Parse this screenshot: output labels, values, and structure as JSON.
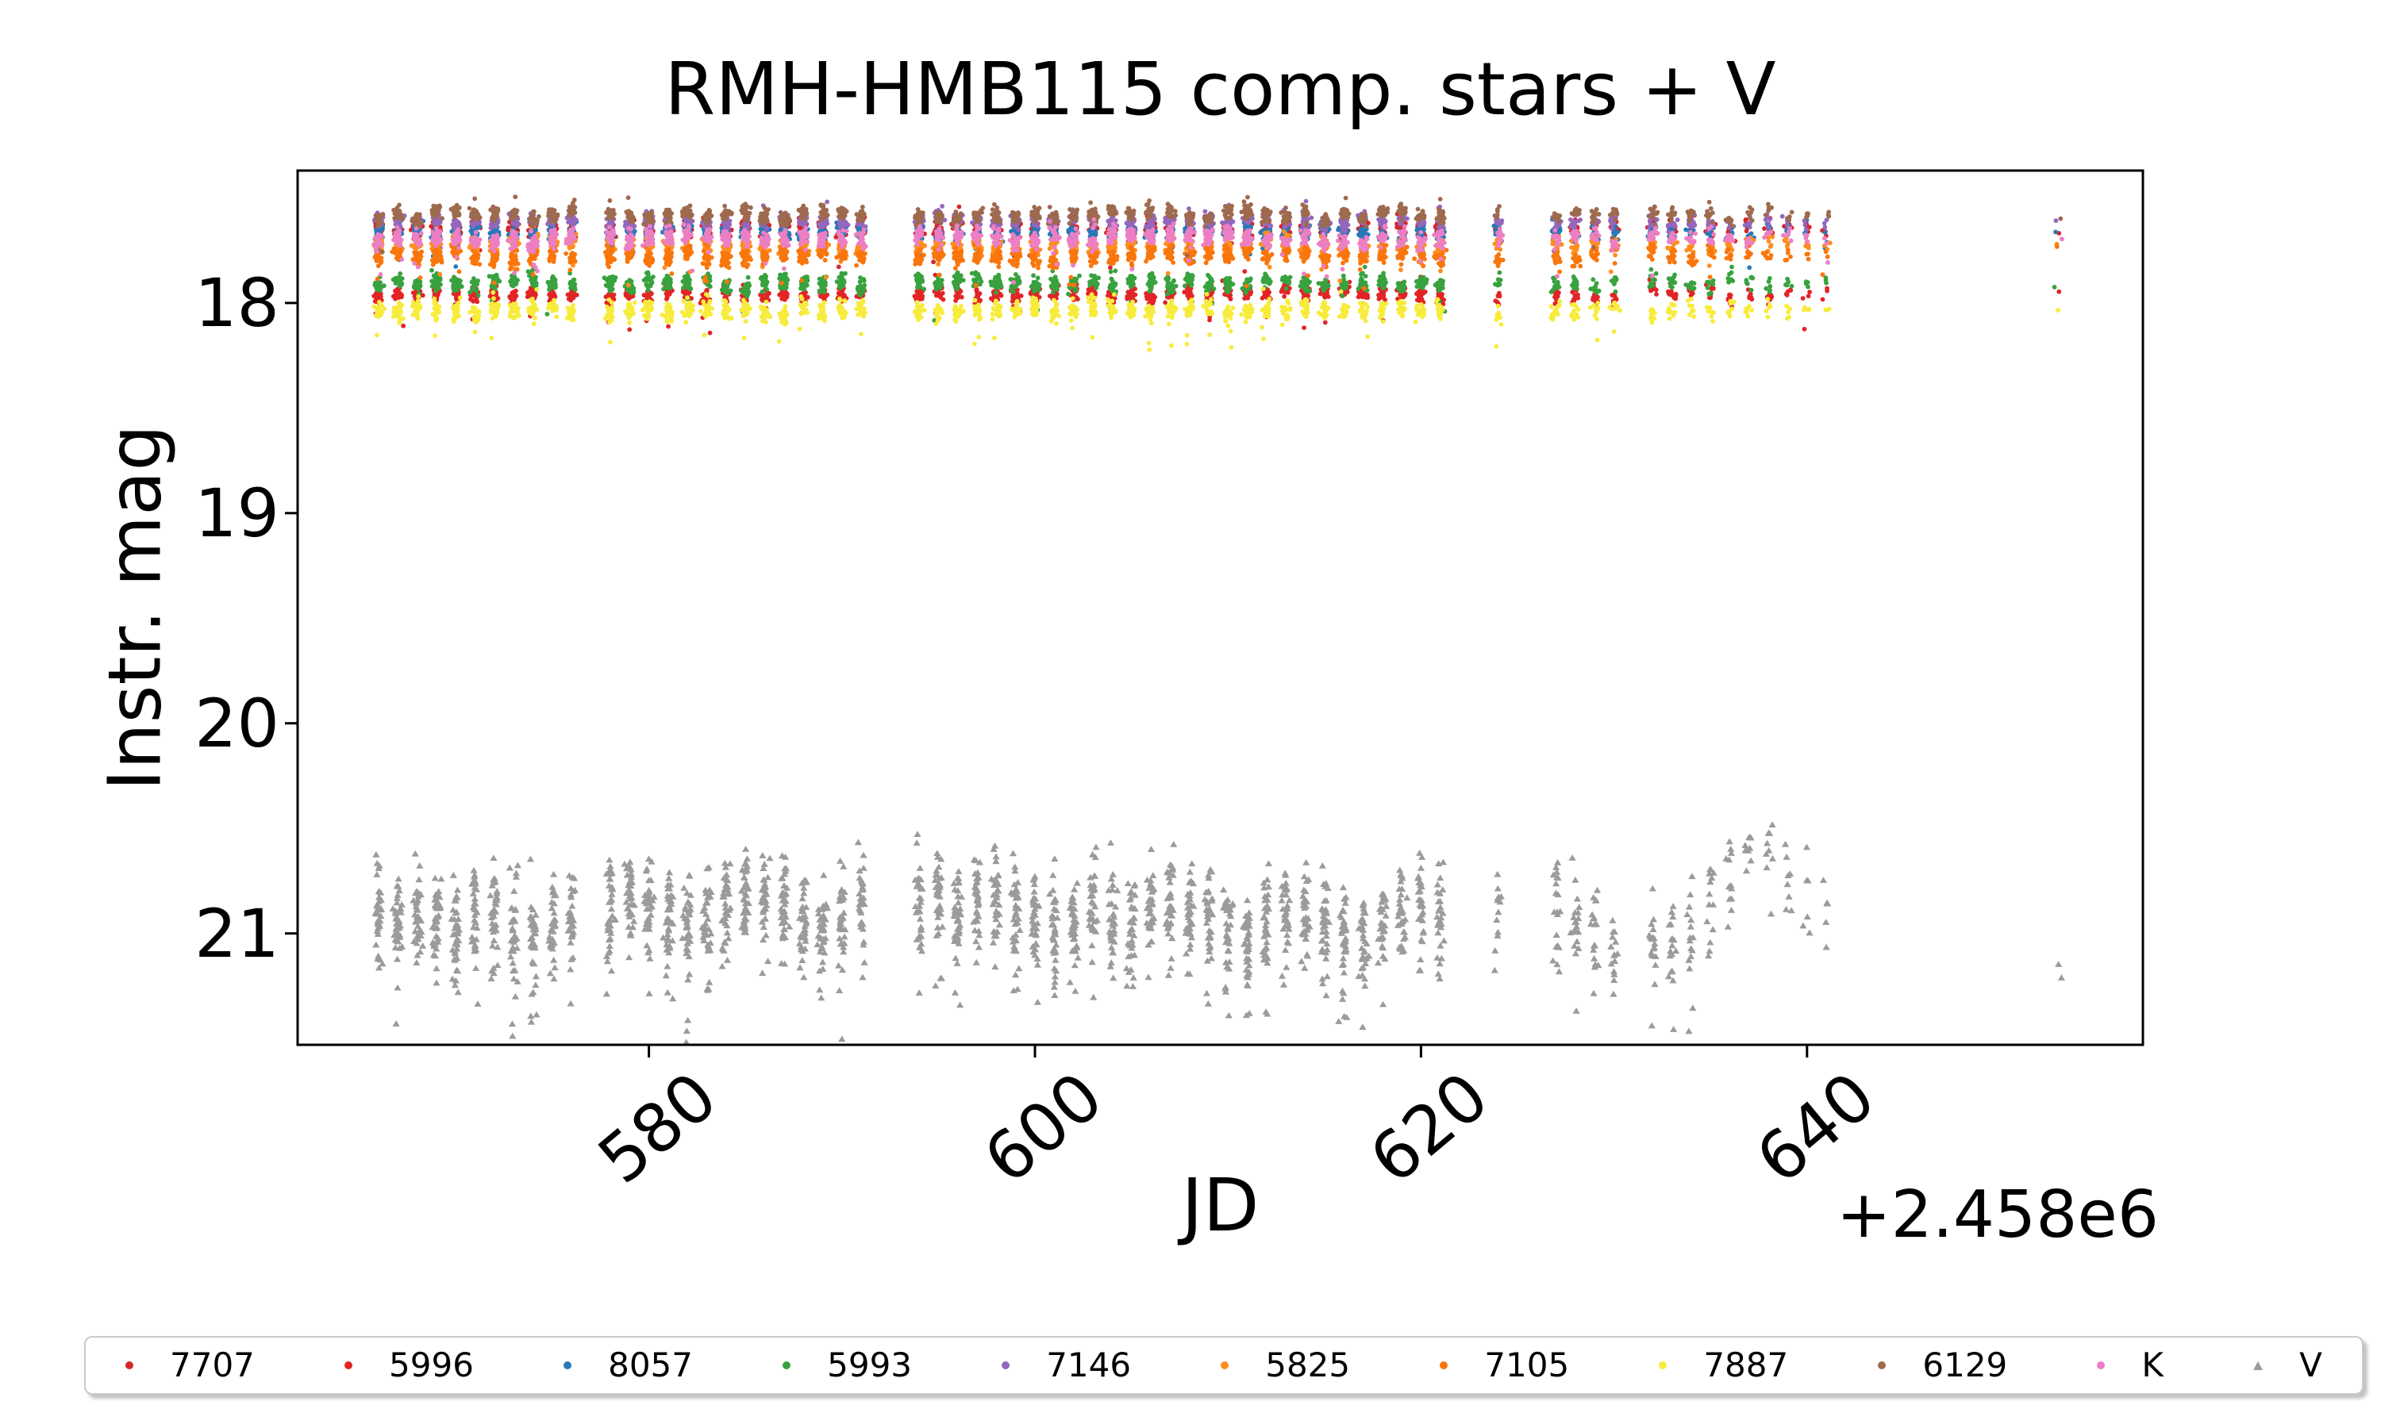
{
  "figure": {
    "title": "RMH-HMB115 comp. stars + V",
    "xlabel": "JD",
    "ylabel": "Instr. mag",
    "x_offset": "+2.458e6"
  },
  "chart_data": {
    "type": "scatter",
    "title": "RMH-HMB115 comp. stars + V",
    "xlabel": "JD",
    "ylabel": "Instr. mag",
    "x_offset_text": "+2.458e6",
    "x_ticks": [
      580,
      600,
      620,
      640
    ],
    "y_ticks": [
      18,
      19,
      20,
      21
    ],
    "xlim": [
      561.8,
      657.4
    ],
    "ylim": [
      17.37,
      21.53
    ],
    "y_axis_inverted": true,
    "grid": false,
    "legend_position": "bottom outside, horizontal row",
    "series": [
      {
        "label": "7707",
        "color": "#d62728",
        "marker": "dot",
        "mag": 17.645,
        "spread": 0.02
      },
      {
        "label": "5996",
        "color": "#e22426",
        "marker": "dot",
        "mag": 17.958,
        "spread": 0.018
      },
      {
        "label": "8057",
        "color": "#2979b9",
        "marker": "dot",
        "mag": 17.664,
        "spread": 0.016
      },
      {
        "label": "5993",
        "color": "#38a23f",
        "marker": "dot",
        "mag": 17.902,
        "spread": 0.018
      },
      {
        "label": "7146",
        "color": "#9467bd",
        "marker": "dot",
        "mag": 17.611,
        "spread": 0.016
      },
      {
        "label": "5825",
        "color": "#ff8d1f",
        "marker": "dot",
        "mag": 17.728,
        "spread": 0.02
      },
      {
        "label": "7105",
        "color": "#f9760c",
        "marker": "dot",
        "mag": 17.776,
        "spread": 0.02
      },
      {
        "label": "7887",
        "color": "#f7ec3d",
        "marker": "dot",
        "mag": 18.034,
        "spread": 0.022
      },
      {
        "label": "6129",
        "color": "#9e6a4e",
        "marker": "dot",
        "mag": 17.581,
        "spread": 0.016
      },
      {
        "label": "K",
        "color": "#ec7fc4",
        "marker": "dot",
        "mag": 17.694,
        "spread": 0.02
      },
      {
        "label": "V",
        "color": "#9b9b9b",
        "marker": "triangle",
        "mag": null,
        "spread": 0.105
      }
    ],
    "epochs_note": "per-night summaries: [JD-2458000, relative density of points, V-band mean mag]",
    "epochs": [
      [
        566,
        1.0,
        20.88
      ],
      [
        567,
        1.0,
        20.92
      ],
      [
        568,
        0.95,
        20.9
      ],
      [
        569,
        1.05,
        20.95
      ],
      [
        570,
        1.0,
        20.98
      ],
      [
        571,
        0.9,
        20.92
      ],
      [
        572,
        1.0,
        20.88
      ],
      [
        573,
        0.95,
        20.96
      ],
      [
        574,
        1.0,
        21.02
      ],
      [
        575,
        0.9,
        20.94
      ],
      [
        576,
        0.85,
        20.9
      ],
      [
        578,
        1.0,
        20.86
      ],
      [
        579,
        1.0,
        20.82
      ],
      [
        580,
        0.95,
        20.86
      ],
      [
        581,
        1.0,
        20.92
      ],
      [
        582,
        1.0,
        20.96
      ],
      [
        583,
        0.9,
        20.92
      ],
      [
        584,
        0.95,
        20.86
      ],
      [
        585,
        1.0,
        20.82
      ],
      [
        586,
        0.9,
        20.8
      ],
      [
        587,
        1.0,
        20.86
      ],
      [
        588,
        0.95,
        20.92
      ],
      [
        589,
        1.0,
        20.96
      ],
      [
        590,
        0.9,
        20.9
      ],
      [
        591,
        0.85,
        20.86
      ],
      [
        594,
        0.9,
        20.82
      ],
      [
        595,
        0.95,
        20.86
      ],
      [
        596,
        1.0,
        20.9
      ],
      [
        597,
        0.9,
        20.86
      ],
      [
        598,
        0.95,
        20.82
      ],
      [
        599,
        1.0,
        20.86
      ],
      [
        600,
        0.95,
        20.92
      ],
      [
        601,
        0.9,
        20.96
      ],
      [
        602,
        0.95,
        20.9
      ],
      [
        603,
        0.9,
        20.86
      ],
      [
        604,
        0.85,
        20.92
      ],
      [
        605,
        0.9,
        20.96
      ],
      [
        606,
        0.95,
        20.86
      ],
      [
        607,
        1.0,
        20.82
      ],
      [
        608,
        0.95,
        20.88
      ],
      [
        609,
        0.9,
        20.94
      ],
      [
        610,
        0.95,
        21.0
      ],
      [
        611,
        1.0,
        21.06
      ],
      [
        612,
        0.9,
        20.94
      ],
      [
        613,
        0.85,
        20.88
      ],
      [
        614,
        0.9,
        20.92
      ],
      [
        615,
        0.95,
        20.96
      ],
      [
        616,
        0.9,
        21.0
      ],
      [
        617,
        0.85,
        21.04
      ],
      [
        618,
        0.8,
        20.94
      ],
      [
        619,
        0.85,
        20.88
      ],
      [
        620,
        0.8,
        20.84
      ],
      [
        621,
        0.75,
        20.9
      ],
      [
        624,
        0.35,
        20.9
      ],
      [
        627,
        0.5,
        20.86
      ],
      [
        628,
        0.5,
        20.96
      ],
      [
        629,
        0.45,
        21.04
      ],
      [
        630,
        0.4,
        21.1
      ],
      [
        632,
        0.5,
        21.0
      ],
      [
        633,
        0.45,
        21.05
      ],
      [
        634,
        0.4,
        20.98
      ],
      [
        635,
        0.35,
        20.88
      ],
      [
        636,
        0.3,
        20.74
      ],
      [
        637,
        0.25,
        20.64
      ],
      [
        638,
        0.22,
        20.6
      ],
      [
        639,
        0.2,
        20.68
      ],
      [
        640,
        0.15,
        20.74
      ],
      [
        641,
        0.12,
        20.8
      ],
      [
        653,
        0.05,
        21.04
      ]
    ]
  },
  "legend": {
    "items": [
      "7707",
      "5996",
      "8057",
      "5993",
      "7146",
      "5825",
      "7105",
      "7887",
      "6129",
      "K",
      "V"
    ]
  }
}
